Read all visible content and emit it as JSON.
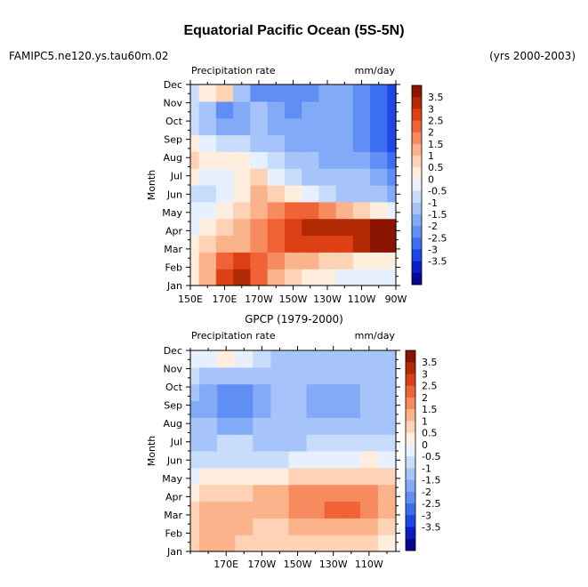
{
  "header": {
    "title": "Equatorial Pacific Ocean (5S-5N)",
    "case_name": "FAMIPC5.ne120.ys.tau60m.02",
    "years": "(yrs 2000-2003)"
  },
  "colors": {
    "scale": [
      "#08088f",
      "#0a1ec8",
      "#1e46e6",
      "#3c6ef0",
      "#5f8ff5",
      "#82aaf7",
      "#a6c3fa",
      "#c8dcfc",
      "#e6f0fe",
      "#ffeede",
      "#fdd2b5",
      "#fbb38c",
      "#f88a5f",
      "#ef6336",
      "#dd4014",
      "#b22a06",
      "#8c1402"
    ]
  },
  "chart_data": [
    {
      "type": "heatmap",
      "panel": "model",
      "left_label": "Precipitation rate",
      "right_label": "mm/day",
      "ylabel": "Month",
      "months": [
        "Jan",
        "Feb",
        "Mar",
        "Apr",
        "May",
        "Jun",
        "Jul",
        "Aug",
        "Sep",
        "Oct",
        "Nov",
        "Dec"
      ],
      "xlim": [
        150,
        270
      ],
      "xticks": [
        150,
        170,
        190,
        210,
        230,
        250,
        270
      ],
      "xtick_labels": [
        "150E",
        "170E",
        "170W",
        "150W",
        "130W",
        "110W",
        "90W"
      ],
      "colorbar_labels": [
        "3.5",
        "3",
        "2.5",
        "2",
        "1.5",
        "1",
        "0.5",
        "0",
        "-0.5",
        "-1",
        "-1.5",
        "-2",
        "-2.5",
        "-3",
        "-3.5"
      ],
      "longitudes": [
        150,
        160,
        170,
        180,
        190,
        200,
        210,
        220,
        230,
        240,
        250,
        260,
        270
      ],
      "values": [
        [
          0.5,
          1.5,
          3.0,
          3.5,
          2.5,
          1.5,
          1.0,
          0.8,
          0.5,
          0.2,
          0.0,
          0.0,
          0.0
        ],
        [
          0.5,
          1.5,
          2.5,
          3.0,
          2.5,
          2.0,
          1.8,
          1.5,
          1.2,
          1.0,
          0.8,
          0.6,
          0.5
        ],
        [
          0.5,
          1.0,
          1.5,
          1.5,
          2.0,
          2.5,
          3.0,
          3.0,
          3.0,
          3.0,
          3.5,
          4.0,
          4.0
        ],
        [
          0.0,
          0.5,
          1.0,
          1.5,
          2.0,
          2.5,
          3.0,
          3.5,
          3.5,
          3.5,
          3.5,
          4.0,
          4.0
        ],
        [
          0.0,
          0.0,
          0.5,
          1.0,
          1.5,
          2.0,
          2.5,
          2.5,
          2.0,
          1.5,
          1.0,
          0.5,
          0.0
        ],
        [
          -0.5,
          -0.5,
          0.0,
          0.5,
          1.5,
          1.0,
          0.5,
          0.0,
          -0.5,
          -1.0,
          -1.0,
          -1.0,
          -1.5
        ],
        [
          0.5,
          0.0,
          0.0,
          0.5,
          1.0,
          0.0,
          -0.5,
          -1.0,
          -1.0,
          -1.0,
          -1.0,
          -1.5,
          -2.0
        ],
        [
          1.0,
          0.5,
          0.5,
          0.5,
          0.0,
          -0.5,
          -1.0,
          -1.0,
          -1.5,
          -1.5,
          -1.5,
          -2.0,
          -2.5
        ],
        [
          0.5,
          0.0,
          -0.5,
          -0.5,
          -1.0,
          -1.0,
          -1.5,
          -1.5,
          -1.5,
          -1.5,
          -2.0,
          -2.5,
          -3.0
        ],
        [
          -0.5,
          -1.0,
          -1.5,
          -1.5,
          -1.0,
          -1.5,
          -1.5,
          -1.5,
          -1.5,
          -1.5,
          -2.0,
          -2.5,
          -3.0
        ],
        [
          -0.5,
          -1.0,
          -2.0,
          -1.5,
          -1.0,
          -1.5,
          -2.0,
          -1.5,
          -1.5,
          -1.5,
          -2.0,
          -2.5,
          -3.0
        ],
        [
          -0.5,
          0.5,
          1.0,
          -1.0,
          -2.0,
          -2.0,
          -2.0,
          -2.0,
          -1.5,
          -1.5,
          -2.0,
          -2.5,
          -3.0
        ]
      ]
    },
    {
      "type": "heatmap",
      "panel": "observations",
      "title": "GPCP (1979-2000)",
      "left_label": "Precipitation rate",
      "right_label": "mm/day",
      "ylabel": "Month",
      "months": [
        "Jan",
        "Feb",
        "Mar",
        "Apr",
        "May",
        "Jun",
        "Jul",
        "Aug",
        "Sep",
        "Oct",
        "Nov",
        "Dec"
      ],
      "xlim": [
        150,
        265
      ],
      "xticks": [
        170,
        190,
        210,
        230,
        250
      ],
      "xtick_labels": [
        "170E",
        "170W",
        "150W",
        "130W",
        "110W"
      ],
      "colorbar_labels": [
        "3.5",
        "3",
        "2.5",
        "2",
        "1.5",
        "1",
        "0.5",
        "0",
        "-0.5",
        "-1",
        "-1.5",
        "-2",
        "-2.5",
        "-3",
        "-3.5"
      ],
      "longitudes": [
        150,
        160,
        170,
        180,
        190,
        200,
        210,
        220,
        230,
        240,
        250,
        260,
        265
      ],
      "values": [
        [
          1.0,
          1.5,
          1.5,
          1.0,
          1.0,
          1.0,
          1.0,
          1.0,
          1.0,
          1.0,
          1.0,
          0.5,
          0.5
        ],
        [
          1.0,
          1.5,
          1.5,
          1.5,
          1.0,
          1.0,
          1.5,
          1.5,
          1.5,
          1.5,
          1.5,
          1.0,
          1.0
        ],
        [
          1.0,
          1.5,
          1.5,
          1.5,
          1.5,
          1.5,
          2.0,
          2.0,
          2.5,
          2.5,
          2.0,
          1.5,
          1.5
        ],
        [
          0.5,
          1.0,
          1.0,
          1.0,
          1.5,
          1.5,
          2.0,
          2.0,
          2.0,
          2.0,
          2.0,
          1.5,
          1.5
        ],
        [
          0.0,
          0.5,
          0.5,
          0.5,
          0.5,
          0.5,
          1.0,
          1.0,
          1.0,
          1.0,
          1.0,
          1.0,
          1.0
        ],
        [
          -0.5,
          -0.5,
          -0.5,
          -0.5,
          -0.5,
          -0.5,
          0.0,
          0.0,
          0.0,
          0.0,
          0.5,
          0.0,
          0.0
        ],
        [
          -1.0,
          -1.0,
          -0.5,
          -0.5,
          -1.0,
          -1.0,
          -1.0,
          -0.5,
          -0.5,
          -0.5,
          -0.5,
          -0.5,
          -0.5
        ],
        [
          -1.0,
          -1.0,
          -1.5,
          -1.5,
          -1.0,
          -1.0,
          -1.0,
          -1.0,
          -1.0,
          -1.0,
          -1.0,
          -1.0,
          -1.0
        ],
        [
          -1.5,
          -1.5,
          -2.0,
          -2.0,
          -1.5,
          -1.0,
          -1.0,
          -1.5,
          -1.5,
          -1.5,
          -1.0,
          -1.0,
          -1.0
        ],
        [
          -1.0,
          -1.5,
          -2.0,
          -2.0,
          -1.5,
          -1.0,
          -1.0,
          -1.5,
          -1.5,
          -1.5,
          -1.0,
          -1.0,
          -1.0
        ],
        [
          -0.5,
          -1.0,
          -1.0,
          -1.0,
          -1.0,
          -1.0,
          -1.0,
          -1.0,
          -1.0,
          -1.0,
          -1.0,
          -1.0,
          -1.0
        ],
        [
          0.0,
          0.0,
          0.5,
          0.0,
          -0.5,
          -1.0,
          -1.0,
          -1.0,
          -1.0,
          -1.0,
          -1.0,
          -1.0,
          -1.0
        ]
      ]
    }
  ]
}
